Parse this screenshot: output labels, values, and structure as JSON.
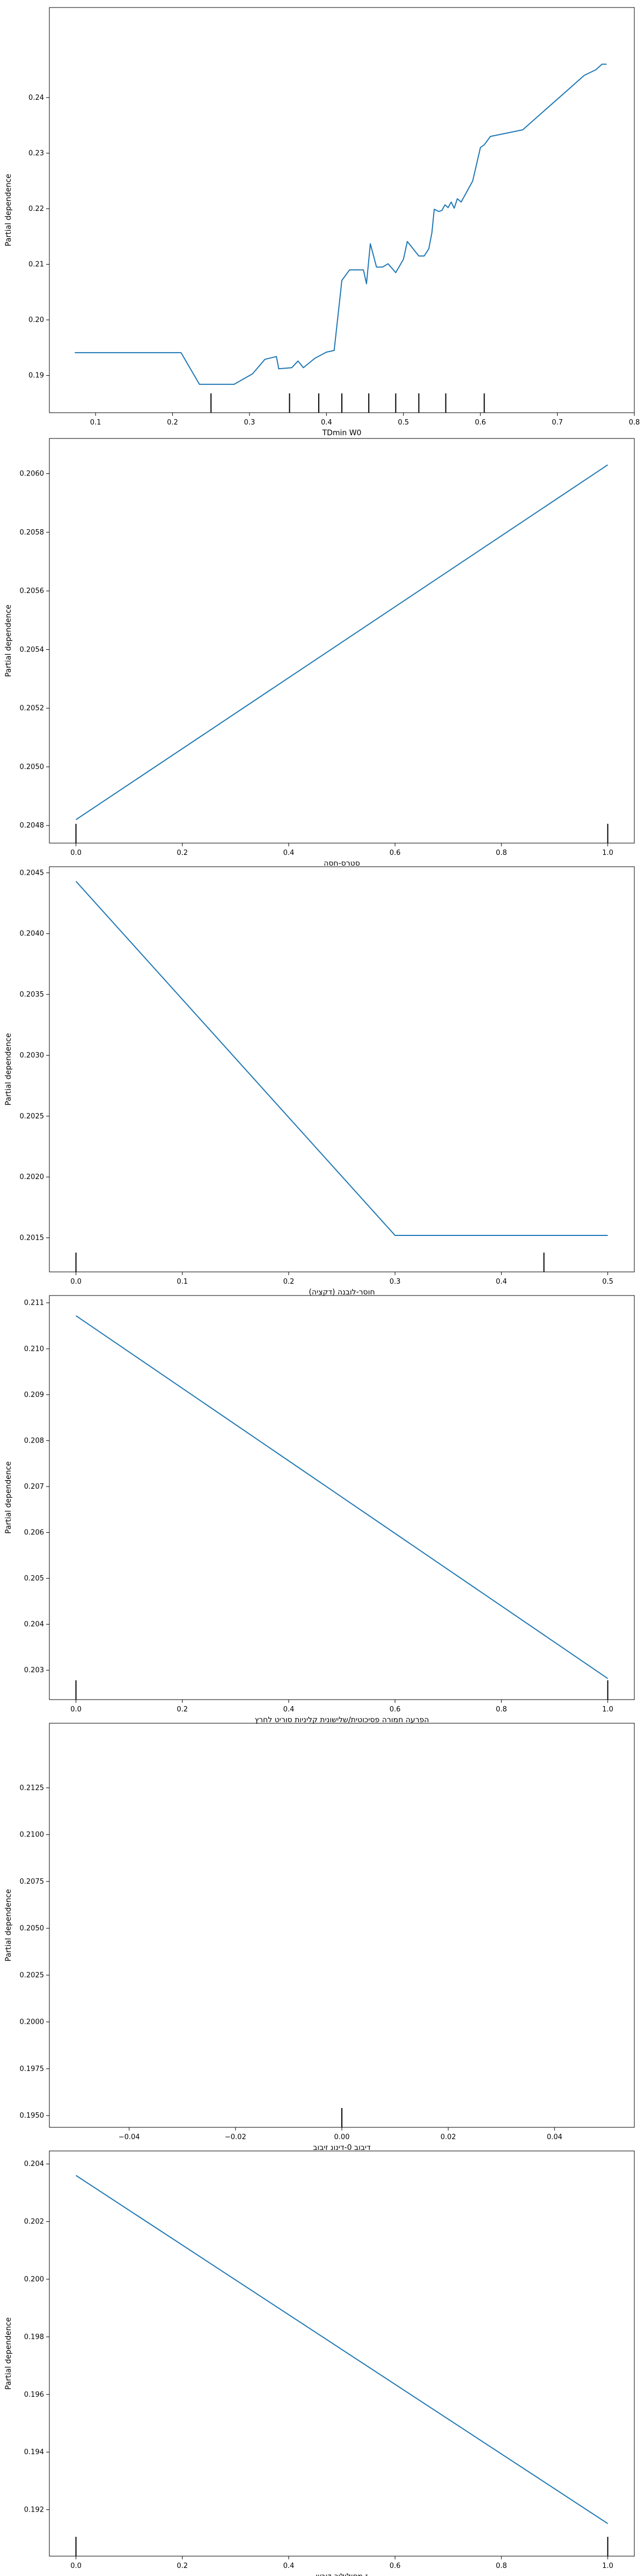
{
  "chart_data": [
    {
      "type": "line",
      "xlabel": "TDmin W0",
      "ylabel": "Partial dependence",
      "xlim": [
        0.04,
        0.8
      ],
      "ylim": [
        0.1833,
        0.2562
      ],
      "xticks": [
        0.1,
        0.2,
        0.3,
        0.4,
        0.5,
        0.6,
        0.7,
        0.8
      ],
      "xtick_labels": [
        "0.1",
        "0.2",
        "0.3",
        "0.4",
        "0.5",
        "0.6",
        "0.7",
        "0.8"
      ],
      "yticks": [
        0.19,
        0.2,
        0.21,
        0.22,
        0.23,
        0.24
      ],
      "ytick_labels": [
        "0.19",
        "0.20",
        "0.21",
        "0.22",
        "0.23",
        "0.24"
      ],
      "series": [
        {
          "x": [
            0.073,
            0.211,
            0.235,
            0.28,
            0.304,
            0.32,
            0.335,
            0.338,
            0.355,
            0.363,
            0.37,
            0.385,
            0.4,
            0.41,
            0.42,
            0.43,
            0.448,
            0.452,
            0.457,
            0.465,
            0.473,
            0.48,
            0.49,
            0.5,
            0.505,
            0.52,
            0.527,
            0.533,
            0.537,
            0.54,
            0.546,
            0.55,
            0.554,
            0.558,
            0.562,
            0.566,
            0.57,
            0.575,
            0.59,
            0.6,
            0.605,
            0.613,
            0.655,
            0.735,
            0.75,
            0.758,
            0.764
          ],
          "y": [
            0.1941,
            0.1941,
            0.1884,
            0.1884,
            0.1903,
            0.1929,
            0.1934,
            0.1912,
            0.1914,
            0.1926,
            0.1914,
            0.1931,
            0.1942,
            0.1945,
            0.2071,
            0.209,
            0.209,
            0.2065,
            0.2137,
            0.2095,
            0.2095,
            0.2101,
            0.2085,
            0.2109,
            0.2141,
            0.2115,
            0.2115,
            0.2128,
            0.2157,
            0.2199,
            0.2195,
            0.2197,
            0.2207,
            0.2202,
            0.2212,
            0.2201,
            0.2218,
            0.2212,
            0.225,
            0.231,
            0.2315,
            0.233,
            0.2342,
            0.244,
            0.245,
            0.246,
            0.246
          ]
        }
      ],
      "deciles": [
        0.25,
        0.352,
        0.39,
        0.42,
        0.455,
        0.49,
        0.52,
        0.555,
        0.605
      ]
    },
    {
      "type": "line",
      "xlabel": "סטרס-חסה",
      "ylabel": "Partial dependence",
      "xlim": [
        -0.05,
        1.05
      ],
      "ylim": [
        0.20474,
        0.20612
      ],
      "xticks": [
        0.0,
        0.2,
        0.4,
        0.6,
        0.8,
        1.0
      ],
      "xtick_labels": [
        "0.0",
        "0.2",
        "0.4",
        "0.6",
        "0.8",
        "1.0"
      ],
      "yticks": [
        0.2048,
        0.205,
        0.2052,
        0.2054,
        0.2056,
        0.2058,
        0.206
      ],
      "ytick_labels": [
        "0.2048",
        "0.2050",
        "0.2052",
        "0.2054",
        "0.2056",
        "0.2058",
        "0.2060"
      ],
      "series": [
        {
          "x": [
            0.0,
            1.0
          ],
          "y": [
            0.20482,
            0.20603
          ]
        }
      ],
      "deciles": [
        0.0,
        1.0
      ]
    },
    {
      "type": "line",
      "xlabel": "(דקציה) חוסר-לובנה",
      "ylabel": "Partial dependence",
      "xlim": [
        -0.025,
        0.525
      ],
      "ylim": [
        0.20122,
        0.20455
      ],
      "xticks": [
        0.0,
        0.1,
        0.2,
        0.3,
        0.4,
        0.5
      ],
      "xtick_labels": [
        "0.0",
        "0.1",
        "0.2",
        "0.3",
        "0.4",
        "0.5"
      ],
      "yticks": [
        0.2015,
        0.202,
        0.2025,
        0.203,
        0.2035,
        0.204,
        0.2045
      ],
      "ytick_labels": [
        "0.2015",
        "0.2020",
        "0.2025",
        "0.2030",
        "0.2035",
        "0.2040",
        "0.2045"
      ],
      "series": [
        {
          "x": [
            0.0,
            0.3,
            0.5
          ],
          "y": [
            0.20443,
            0.20152,
            0.20152
          ]
        }
      ],
      "deciles": [
        0.0,
        0.44
      ]
    },
    {
      "type": "line",
      "xlabel": "הפרעה חמורה פסיכוטית/שלישונית קליניות סוריט לחרץ",
      "ylabel": "Partial dependence",
      "xlim": [
        -0.05,
        1.05
      ],
      "ylim": [
        0.20236,
        0.21116
      ],
      "xticks": [
        0.0,
        0.2,
        0.4,
        0.6,
        0.8,
        1.0
      ],
      "xtick_labels": [
        "0.0",
        "0.2",
        "0.4",
        "0.6",
        "0.8",
        "1.0"
      ],
      "yticks": [
        0.203,
        0.204,
        0.205,
        0.206,
        0.207,
        0.208,
        0.209,
        0.21,
        0.211
      ],
      "ytick_labels": [
        "0.203",
        "0.204",
        "0.205",
        "0.206",
        "0.207",
        "0.208",
        "0.209",
        "0.210",
        "0.211"
      ],
      "series": [
        {
          "x": [
            0.0,
            1.0
          ],
          "y": [
            0.21072,
            0.20282
          ]
        }
      ],
      "deciles": [
        0.0,
        1.0
      ]
    },
    {
      "type": "line",
      "xlabel": "דיבוב 0-דינונ זיבוב",
      "ylabel": "Partial dependence",
      "xlim": [
        -0.055,
        0.055
      ],
      "ylim": [
        0.19437,
        0.21595
      ],
      "xticks": [
        -0.04,
        -0.02,
        0.0,
        0.02,
        0.04
      ],
      "xtick_labels": [
        "−0.04",
        "−0.02",
        "0.00",
        "0.02",
        "0.04"
      ],
      "yticks": [
        0.195,
        0.1975,
        0.2,
        0.2025,
        0.205,
        0.2075,
        0.21,
        0.2125
      ],
      "ytick_labels": [
        "0.1950",
        "0.1975",
        "0.2000",
        "0.2025",
        "0.2050",
        "0.2075",
        "0.2100",
        "0.2125"
      ],
      "series": [
        {
          "x": [],
          "y": []
        }
      ],
      "deciles": [
        0.0
      ]
    },
    {
      "type": "line",
      "xlabel": "ז מסולולוכ-דורש",
      "ylabel": "Partial dependence",
      "xlim": [
        -0.05,
        1.05
      ],
      "ylim": [
        0.19039,
        0.20445
      ],
      "xticks": [
        0.0,
        0.2,
        0.4,
        0.6,
        0.8,
        1.0
      ],
      "xtick_labels": [
        "0.0",
        "0.2",
        "0.4",
        "0.6",
        "0.8",
        "1.0"
      ],
      "yticks": [
        0.192,
        0.194,
        0.196,
        0.198,
        0.2,
        0.202,
        0.204
      ],
      "ytick_labels": [
        "0.192",
        "0.194",
        "0.196",
        "0.198",
        "0.200",
        "0.202",
        "0.204"
      ],
      "series": [
        {
          "x": [
            0.0,
            1.0
          ],
          "y": [
            0.2036,
            0.19152
          ]
        }
      ],
      "deciles": [
        0.0,
        1.0
      ]
    }
  ],
  "colors": {
    "line": "#1f77b4",
    "axes": "#000000",
    "background": "#ffffff"
  }
}
